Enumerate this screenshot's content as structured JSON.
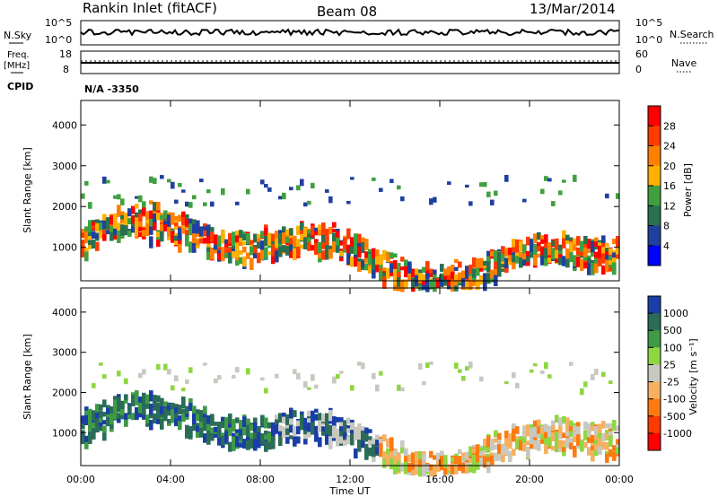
{
  "header": {
    "station": "Rankin Inlet (fitACF)",
    "beam": "Beam 08",
    "date": "13/Mar/2014"
  },
  "noise_panel": {
    "left_label": "N.Sky",
    "left_ticks": [
      "10^5",
      "10^0"
    ],
    "right_label": "N.Search",
    "right_ticks": [
      "10^5",
      "10^0"
    ]
  },
  "freq_panel": {
    "left_label_1": "Freq.",
    "left_label_2": "[MHz]",
    "left_ticks": [
      "18",
      "8"
    ],
    "right_label": "Nave",
    "right_ticks": [
      "60",
      "0"
    ]
  },
  "cpid": {
    "label": "CPID",
    "value": "N/A  -3350"
  },
  "chart_data": [
    {
      "type": "heatmap",
      "name": "power",
      "ylabel": "Slant Range [km]",
      "xlabel": "",
      "ylim": [
        180,
        4600
      ],
      "y_ticks": [
        "4000",
        "3000",
        "2000",
        "1000"
      ],
      "y_tick_values": [
        4000,
        3000,
        2000,
        1000
      ],
      "colorbar_label": "Power [dB]",
      "colorbar_ticks": [
        "28",
        "24",
        "20",
        "16",
        "12",
        "8",
        "4"
      ],
      "colorbar_colors": [
        "#ff0000",
        "#ff3b00",
        "#ff8000",
        "#ffb000",
        "#40a040",
        "#2a7050",
        "#2040a0",
        "#0000ff"
      ]
    },
    {
      "type": "heatmap",
      "name": "velocity",
      "ylabel": "Slant Range [km]",
      "xlabel": "Time UT",
      "ylim": [
        180,
        4600
      ],
      "y_ticks": [
        "4000",
        "3000",
        "2000",
        "1000"
      ],
      "y_tick_values": [
        4000,
        3000,
        2000,
        1000
      ],
      "x_ticks": [
        "00:00",
        "04:00",
        "08:00",
        "12:00",
        "16:00",
        "20:00",
        "00:00"
      ],
      "colorbar_label": "Velocity [m s⁻¹]",
      "colorbar_ticks": [
        "1000",
        "500",
        "100",
        "25",
        "-25",
        "-100",
        "-500",
        "-1000"
      ],
      "colorbar_colors": [
        "#1a3ea8",
        "#2a6c58",
        "#3f9a46",
        "#8ed642",
        "#c8c8c0",
        "#f5b060",
        "#ff7a10",
        "#ff3a00",
        "#ff0000"
      ]
    }
  ]
}
